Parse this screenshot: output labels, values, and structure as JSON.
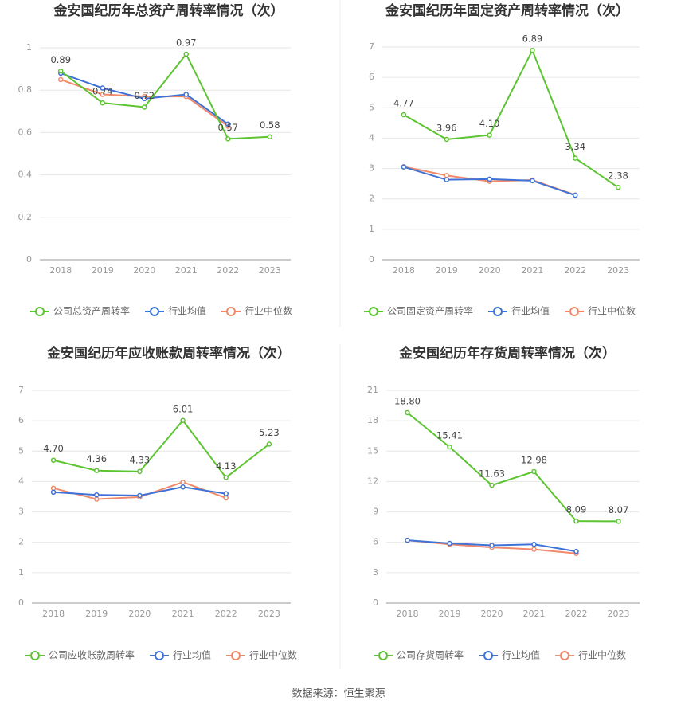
{
  "chart_data": [
    {
      "type": "line",
      "title": "金安国纪历年总资产周转率情况（次）",
      "categories": [
        "2018",
        "2019",
        "2020",
        "2021",
        "2022",
        "2023"
      ],
      "ylim": [
        0,
        1
      ],
      "yticks": [
        0,
        0.2,
        0.4,
        0.6,
        0.8,
        1
      ],
      "grid": true,
      "legend": "bottom",
      "series": [
        {
          "name": "公司总资产周转率",
          "color": "#5cc430",
          "values": [
            0.89,
            0.74,
            0.72,
            0.97,
            0.57,
            0.58
          ],
          "value_labels": [
            "0.89",
            "0.74",
            "0.72",
            "0.97",
            "0.57",
            "0.58"
          ]
        },
        {
          "name": "行业均值",
          "color": "#3f72d6",
          "values": [
            0.88,
            0.81,
            0.76,
            0.78,
            0.64,
            null
          ]
        },
        {
          "name": "行业中位数",
          "color": "#f08a6a",
          "values": [
            0.85,
            0.78,
            0.77,
            0.77,
            0.63,
            null
          ]
        }
      ]
    },
    {
      "type": "line",
      "title": "金安国纪历年固定资产周转率情况（次）",
      "categories": [
        "2018",
        "2019",
        "2020",
        "2021",
        "2022",
        "2023"
      ],
      "ylim": [
        0,
        7
      ],
      "yticks": [
        0,
        1,
        2,
        3,
        4,
        5,
        6,
        7
      ],
      "grid": true,
      "legend": "bottom",
      "series": [
        {
          "name": "公司固定资产周转率",
          "color": "#5cc430",
          "values": [
            4.77,
            3.96,
            4.1,
            6.89,
            3.34,
            2.38
          ],
          "value_labels": [
            "4.77",
            "3.96",
            "4.10",
            "6.89",
            "3.34",
            "2.38"
          ]
        },
        {
          "name": "行业均值",
          "color": "#3f72d6",
          "values": [
            3.05,
            2.63,
            2.65,
            2.6,
            2.12,
            null
          ]
        },
        {
          "name": "行业中位数",
          "color": "#f08a6a",
          "values": [
            3.06,
            2.77,
            2.58,
            2.62,
            2.13,
            null
          ]
        }
      ]
    },
    {
      "type": "line",
      "title": "金安国纪历年应收账款周转率情况（次）",
      "categories": [
        "2018",
        "2019",
        "2020",
        "2021",
        "2022",
        "2023"
      ],
      "ylim": [
        0,
        7
      ],
      "yticks": [
        0,
        1,
        2,
        3,
        4,
        5,
        6,
        7
      ],
      "grid": true,
      "legend": "bottom",
      "series": [
        {
          "name": "公司应收账款周转率",
          "color": "#5cc430",
          "values": [
            4.7,
            4.36,
            4.33,
            6.01,
            4.13,
            5.23
          ],
          "value_labels": [
            "4.70",
            "4.36",
            "4.33",
            "6.01",
            "4.13",
            "5.23"
          ]
        },
        {
          "name": "行业均值",
          "color": "#3f72d6",
          "values": [
            3.65,
            3.56,
            3.54,
            3.82,
            3.6,
            null
          ]
        },
        {
          "name": "行业中位数",
          "color": "#f08a6a",
          "values": [
            3.78,
            3.42,
            3.49,
            3.98,
            3.46,
            null
          ]
        }
      ]
    },
    {
      "type": "line",
      "title": "金安国纪历年存货周转率情况（次）",
      "categories": [
        "2018",
        "2019",
        "2020",
        "2021",
        "2022",
        "2023"
      ],
      "ylim": [
        0,
        21
      ],
      "yticks": [
        0,
        3,
        6,
        9,
        12,
        15,
        18,
        21
      ],
      "grid": true,
      "legend": "bottom",
      "series": [
        {
          "name": "公司存货周转率",
          "color": "#5cc430",
          "values": [
            18.8,
            15.41,
            11.63,
            12.98,
            8.09,
            8.07
          ],
          "value_labels": [
            "18.80",
            "15.41",
            "11.63",
            "12.98",
            "8.09",
            "8.07"
          ]
        },
        {
          "name": "行业均值",
          "color": "#3f72d6",
          "values": [
            6.2,
            5.9,
            5.7,
            5.8,
            5.1,
            null
          ]
        },
        {
          "name": "行业中位数",
          "color": "#f08a6a",
          "values": [
            6.2,
            5.8,
            5.5,
            5.3,
            4.9,
            null
          ]
        }
      ]
    }
  ],
  "source": "数据来源：恒生聚源"
}
